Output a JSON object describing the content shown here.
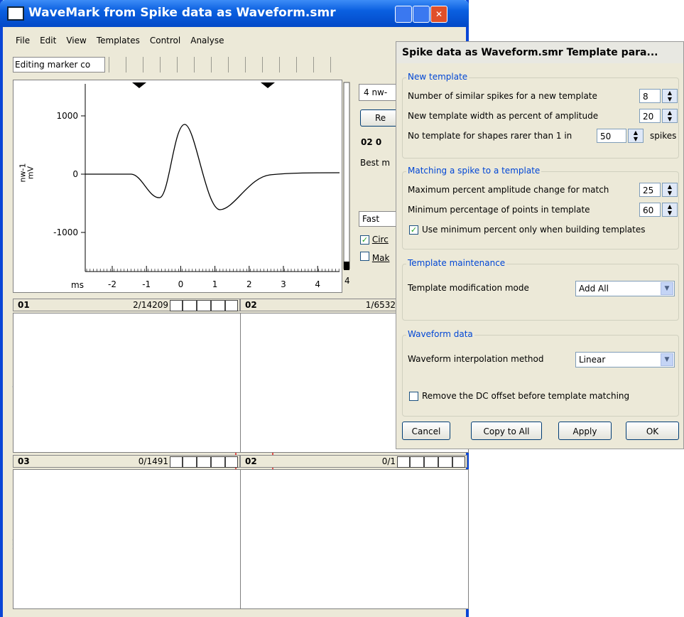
{
  "window": {
    "title": "WaveMark from Spike data as Waveform.smr",
    "menu": [
      "File",
      "Edit",
      "View",
      "Templates",
      "Control",
      "Analyse"
    ],
    "toolbar_field": "Editing marker co"
  },
  "plot": {
    "yticks": [
      "1000",
      "0",
      "-1000"
    ],
    "xticks": [
      "-2",
      "-1",
      "0",
      "1",
      "2",
      "3",
      "4"
    ],
    "x_unit": "ms",
    "y_label": [
      "nw-1",
      "mV"
    ]
  },
  "side_panel": {
    "channel": "4 nw-",
    "button": "Re",
    "ids": [
      "02",
      "0"
    ],
    "best": "Best m",
    "speed": "Fast",
    "checks": [
      "Circ",
      "Mak"
    ],
    "number": "4"
  },
  "templates": [
    {
      "id": "01",
      "count": "2/14209"
    },
    {
      "id": "02",
      "count": "1/6532"
    },
    {
      "id": "03",
      "count": "0/1491"
    },
    {
      "id": "02",
      "count": "0/1"
    }
  ],
  "dialog": {
    "title": "Spike data as Waveform.smr Template para...",
    "groups": [
      {
        "title": "New template",
        "rows": [
          {
            "label": "Number of similar spikes for a new template",
            "value": "8"
          },
          {
            "label": "New template width as percent of amplitude",
            "value": "20"
          },
          {
            "label": "No template for shapes rarer than 1 in",
            "value": "50",
            "suffix": "spikes"
          }
        ]
      },
      {
        "title": "Matching a spike to a template",
        "rows": [
          {
            "label": "Maximum percent amplitude change for match",
            "value": "25"
          },
          {
            "label": "Minimum percentage of points in template",
            "value": "60"
          }
        ],
        "checkbox": {
          "label": "Use minimum percent only when building templates",
          "checked": true
        }
      },
      {
        "title": "Template maintenance",
        "rows": [
          {
            "label": "Template modification mode",
            "value": "Add All"
          }
        ]
      },
      {
        "title": "Waveform data",
        "rows": [
          {
            "label": "Waveform interpolation method",
            "value": "Linear"
          }
        ],
        "checkbox": {
          "label": "Remove the DC offset before template matching",
          "checked": false
        }
      }
    ],
    "buttons": [
      "Cancel",
      "Copy to All",
      "Apply",
      "OK"
    ]
  }
}
